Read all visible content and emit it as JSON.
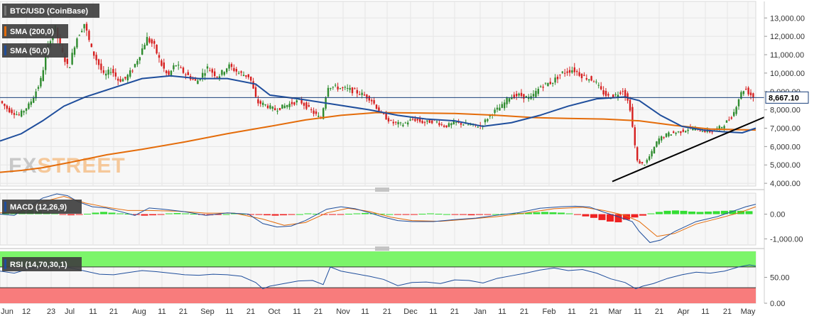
{
  "chart_data": [
    {
      "type": "candlestick",
      "title": "BTC/USD (CoinBase)",
      "overlays": [
        {
          "name": "SMA (200,0)",
          "color": "#e46c0a",
          "points": [
            [
              0,
              4600
            ],
            [
              30,
              4700
            ],
            [
              60,
              4850
            ],
            [
              100,
              5150
            ],
            [
              150,
              5550
            ],
            [
              200,
              5850
            ],
            [
              260,
              6250
            ],
            [
              320,
              6700
            ],
            [
              380,
              7100
            ],
            [
              430,
              7450
            ],
            [
              480,
              7700
            ],
            [
              530,
              7850
            ],
            [
              580,
              7830
            ],
            [
              640,
              7800
            ],
            [
              700,
              7700
            ],
            [
              750,
              7580
            ],
            [
              800,
              7530
            ],
            [
              850,
              7500
            ],
            [
              900,
              7400
            ],
            [
              950,
              7150
            ],
            [
              1000,
              6950
            ],
            [
              1064,
              6900
            ]
          ]
        },
        {
          "name": "SMA (50,0)",
          "color": "#1f4e9c",
          "points": [
            [
              0,
              6300
            ],
            [
              30,
              6700
            ],
            [
              60,
              7400
            ],
            [
              90,
              8200
            ],
            [
              120,
              8700
            ],
            [
              160,
              9200
            ],
            [
              200,
              9700
            ],
            [
              240,
              9850
            ],
            [
              280,
              9700
            ],
            [
              320,
              9700
            ],
            [
              360,
              9400
            ],
            [
              380,
              8800
            ],
            [
              420,
              8600
            ],
            [
              470,
              8300
            ],
            [
              520,
              8000
            ],
            [
              560,
              7700
            ],
            [
              600,
              7500
            ],
            [
              640,
              7400
            ],
            [
              680,
              7100
            ],
            [
              720,
              7300
            ],
            [
              760,
              7700
            ],
            [
              800,
              8200
            ],
            [
              840,
              8600
            ],
            [
              880,
              8700
            ],
            [
              900,
              8500
            ],
            [
              930,
              7700
            ],
            [
              960,
              7100
            ],
            [
              990,
              6900
            ],
            [
              1020,
              6800
            ],
            [
              1045,
              6750
            ],
            [
              1064,
              7000
            ]
          ]
        }
      ],
      "trendline": {
        "color": "#000000",
        "start": [
          862,
          4100
        ],
        "end": [
          1076,
          7600
        ]
      },
      "current_price": "8,667.10",
      "current_price_value": 8667,
      "yticks": [
        "13,000.00",
        "12,000.00",
        "11,000.00",
        "10,000.00",
        "9,000.00",
        "8,000.00",
        "7,000.00",
        "6,000.00",
        "5,000.00",
        "4,000.00"
      ],
      "ylim": [
        3850,
        13900
      ],
      "up_color": "#2e8b2e",
      "down_color": "#d62020",
      "watermark": "FXSTREET"
    },
    {
      "type": "bar",
      "title": "MACD (12,26,9)",
      "ylim": [
        -1250,
        850
      ],
      "yticks": [
        "0.00",
        "-1,000.00"
      ],
      "histogram_colors": {
        "positive": "#33dd33",
        "negative": "#ee2222"
      },
      "macd_line_color": "#1f4e9c",
      "signal_line_color": "#e46c0a",
      "macd_points": [
        [
          0,
          0
        ],
        [
          20,
          -50
        ],
        [
          40,
          300
        ],
        [
          60,
          650
        ],
        [
          80,
          820
        ],
        [
          95,
          750
        ],
        [
          110,
          500
        ],
        [
          130,
          300
        ],
        [
          150,
          250
        ],
        [
          170,
          100
        ],
        [
          190,
          -50
        ],
        [
          210,
          250
        ],
        [
          230,
          200
        ],
        [
          260,
          100
        ],
        [
          290,
          -50
        ],
        [
          320,
          50
        ],
        [
          350,
          0
        ],
        [
          370,
          -380
        ],
        [
          390,
          -520
        ],
        [
          410,
          -480
        ],
        [
          430,
          -260
        ],
        [
          460,
          200
        ],
        [
          480,
          300
        ],
        [
          500,
          220
        ],
        [
          520,
          60
        ],
        [
          540,
          -120
        ],
        [
          560,
          -260
        ],
        [
          580,
          -300
        ],
        [
          610,
          -300
        ],
        [
          640,
          -220
        ],
        [
          670,
          -160
        ],
        [
          700,
          -40
        ],
        [
          730,
          60
        ],
        [
          760,
          240
        ],
        [
          790,
          300
        ],
        [
          810,
          320
        ],
        [
          830,
          290
        ],
        [
          850,
          80
        ],
        [
          870,
          -100
        ],
        [
          890,
          -300
        ],
        [
          900,
          -700
        ],
        [
          915,
          -1150
        ],
        [
          930,
          -1050
        ],
        [
          950,
          -700
        ],
        [
          980,
          -300
        ],
        [
          1010,
          -100
        ],
        [
          1030,
          100
        ],
        [
          1050,
          300
        ],
        [
          1064,
          400
        ]
      ],
      "signal_points": [
        [
          0,
          50
        ],
        [
          30,
          100
        ],
        [
          60,
          500
        ],
        [
          90,
          720
        ],
        [
          120,
          450
        ],
        [
          150,
          280
        ],
        [
          180,
          150
        ],
        [
          210,
          150
        ],
        [
          250,
          120
        ],
        [
          290,
          40
        ],
        [
          330,
          40
        ],
        [
          370,
          -200
        ],
        [
          400,
          -450
        ],
        [
          430,
          -340
        ],
        [
          460,
          50
        ],
        [
          490,
          240
        ],
        [
          520,
          110
        ],
        [
          550,
          -120
        ],
        [
          580,
          -260
        ],
        [
          620,
          -290
        ],
        [
          660,
          -200
        ],
        [
          700,
          -100
        ],
        [
          740,
          50
        ],
        [
          780,
          220
        ],
        [
          820,
          280
        ],
        [
          850,
          150
        ],
        [
          880,
          -50
        ],
        [
          900,
          -300
        ],
        [
          925,
          -900
        ],
        [
          950,
          -780
        ],
        [
          980,
          -400
        ],
        [
          1010,
          -180
        ],
        [
          1040,
          50
        ],
        [
          1064,
          300
        ]
      ],
      "histogram": [
        40,
        60,
        80,
        100,
        80,
        50,
        20,
        -10,
        -30,
        -20,
        10,
        40,
        60,
        40,
        20,
        10,
        -20,
        -40,
        -30,
        -10,
        20,
        30,
        20,
        10,
        -10,
        -30,
        -20,
        0,
        20,
        10,
        -10,
        -20,
        -30,
        -40,
        -30,
        -20,
        0,
        20,
        10,
        -10,
        -20,
        -10,
        10,
        20,
        30,
        20,
        10,
        0,
        -10,
        -20,
        -10,
        10,
        20,
        10,
        0,
        -10,
        -20,
        -30,
        -20,
        -10,
        0,
        10,
        20,
        30,
        40,
        50,
        60,
        50,
        40,
        20,
        -20,
        -60,
        -100,
        -160,
        -200,
        -220,
        -150,
        -90,
        -40,
        20,
        60,
        90,
        100,
        90,
        70,
        60,
        70,
        80,
        90,
        100,
        90,
        80
      ]
    },
    {
      "type": "line",
      "title": "RSI (14,70,30,1)",
      "ylim": [
        0,
        100
      ],
      "yticks": [
        "50.00",
        "0.00"
      ],
      "overbought": 70,
      "oversold": 30,
      "overbought_color": "#7cf56a",
      "oversold_color": "#f87c7c",
      "line_color": "#1f4e9c",
      "points": [
        [
          0,
          62
        ],
        [
          20,
          58
        ],
        [
          40,
          66
        ],
        [
          60,
          72
        ],
        [
          80,
          75
        ],
        [
          100,
          68
        ],
        [
          120,
          62
        ],
        [
          140,
          56
        ],
        [
          160,
          55
        ],
        [
          180,
          59
        ],
        [
          200,
          63
        ],
        [
          220,
          61
        ],
        [
          240,
          58
        ],
        [
          260,
          55
        ],
        [
          280,
          54
        ],
        [
          300,
          56
        ],
        [
          320,
          55
        ],
        [
          340,
          52
        ],
        [
          360,
          40
        ],
        [
          370,
          28
        ],
        [
          380,
          33
        ],
        [
          400,
          38
        ],
        [
          420,
          43
        ],
        [
          440,
          44
        ],
        [
          455,
          36
        ],
        [
          465,
          70
        ],
        [
          480,
          62
        ],
        [
          500,
          57
        ],
        [
          520,
          52
        ],
        [
          540,
          46
        ],
        [
          560,
          34
        ],
        [
          580,
          40
        ],
        [
          600,
          41
        ],
        [
          620,
          38
        ],
        [
          640,
          45
        ],
        [
          660,
          44
        ],
        [
          680,
          39
        ],
        [
          700,
          48
        ],
        [
          720,
          53
        ],
        [
          740,
          58
        ],
        [
          760,
          64
        ],
        [
          780,
          68
        ],
        [
          800,
          63
        ],
        [
          820,
          65
        ],
        [
          840,
          58
        ],
        [
          860,
          47
        ],
        [
          880,
          40
        ],
        [
          895,
          28
        ],
        [
          905,
          33
        ],
        [
          920,
          38
        ],
        [
          940,
          48
        ],
        [
          960,
          55
        ],
        [
          980,
          60
        ],
        [
          1000,
          58
        ],
        [
          1020,
          62
        ],
        [
          1040,
          70
        ],
        [
          1055,
          74
        ],
        [
          1064,
          72
        ]
      ]
    }
  ],
  "xaxis": {
    "labels": [
      {
        "t": "Jun",
        "x": 10
      },
      {
        "t": "12",
        "x": 37
      },
      {
        "t": "23",
        "x": 72
      },
      {
        "t": "Jul",
        "x": 98
      },
      {
        "t": "11",
        "x": 131
      },
      {
        "t": "21",
        "x": 160
      },
      {
        "t": "Aug",
        "x": 196
      },
      {
        "t": "11",
        "x": 228
      },
      {
        "t": "21",
        "x": 258
      },
      {
        "t": "Sep",
        "x": 292
      },
      {
        "t": "11",
        "x": 323
      },
      {
        "t": "21",
        "x": 353
      },
      {
        "t": "Oct",
        "x": 386
      },
      {
        "t": "11",
        "x": 418
      },
      {
        "t": "21",
        "x": 448
      },
      {
        "t": "Nov",
        "x": 483
      },
      {
        "t": "11",
        "x": 514
      },
      {
        "t": "21",
        "x": 545
      },
      {
        "t": "Dec",
        "x": 578
      },
      {
        "t": "11",
        "x": 610
      },
      {
        "t": "21",
        "x": 640
      },
      {
        "t": "Jan",
        "x": 676
      },
      {
        "t": "11",
        "x": 707
      },
      {
        "t": "21",
        "x": 738
      },
      {
        "t": "Feb",
        "x": 773
      },
      {
        "t": "11",
        "x": 805
      },
      {
        "t": "21",
        "x": 836
      },
      {
        "t": "Mar",
        "x": 866
      },
      {
        "t": "11",
        "x": 898
      },
      {
        "t": "21",
        "x": 928
      },
      {
        "t": "Apr",
        "x": 962
      },
      {
        "t": "11",
        "x": 993
      },
      {
        "t": "21",
        "x": 1024
      },
      {
        "t": "May",
        "x": 1053
      }
    ]
  }
}
